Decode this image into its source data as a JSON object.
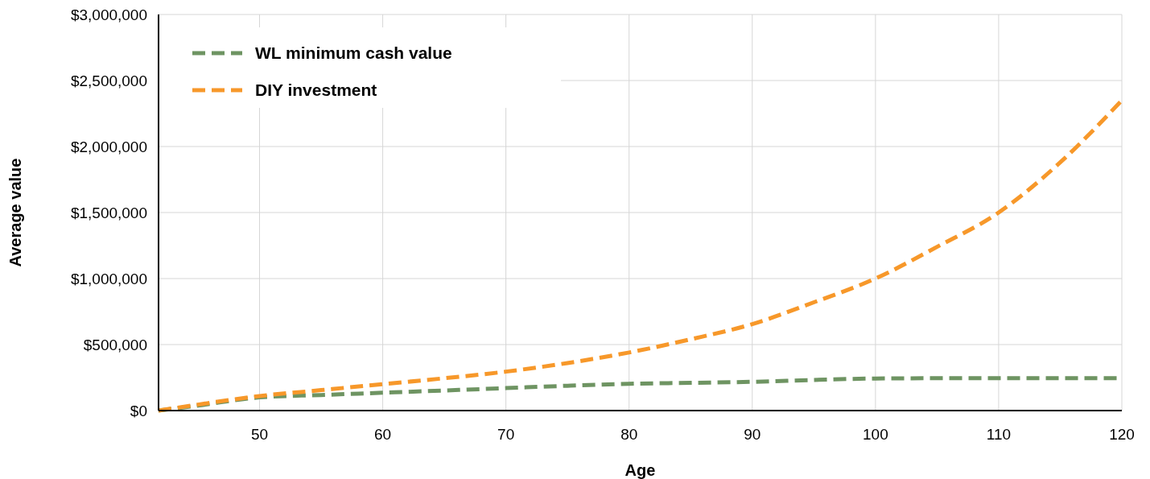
{
  "chart_data": {
    "type": "line",
    "xlabel": "Age",
    "ylabel": "Average value",
    "x": [
      41.8,
      45,
      50,
      55,
      60,
      65,
      70,
      75,
      80,
      85,
      90,
      95,
      100,
      105,
      110,
      115,
      120
    ],
    "series": [
      {
        "name": "WL minimum cash value",
        "color": "#6e9462",
        "values": [
          0,
          38000,
          100000,
          118000,
          135000,
          152000,
          170000,
          188000,
          203000,
          210000,
          218000,
          232000,
          243000,
          245000,
          245000,
          245000,
          245000
        ]
      },
      {
        "name": "DIY investment",
        "color": "#f7982a",
        "values": [
          0,
          45000,
          110000,
          155000,
          200000,
          245000,
          295000,
          360000,
          440000,
          540000,
          655000,
          820000,
          1000000,
          1240000,
          1500000,
          1880000,
          2350000
        ]
      }
    ],
    "xlim": [
      41.8,
      120
    ],
    "xticks": [
      50,
      60,
      70,
      80,
      90,
      100,
      110,
      120
    ],
    "ylim": [
      0,
      3000000
    ],
    "yticks": [
      {
        "value": 0,
        "label": "$0"
      },
      {
        "value": 500000,
        "label": "$500,000"
      },
      {
        "value": 1000000,
        "label": "$1,000,000"
      },
      {
        "value": 1500000,
        "label": "$1,500,000"
      },
      {
        "value": 2000000,
        "label": "$2,000,000"
      },
      {
        "value": 2500000,
        "label": "$2,500,000"
      },
      {
        "value": 3000000,
        "label": "$3,000,000"
      }
    ],
    "grid": true,
    "legend": "top left",
    "line_style": "dashed",
    "marker": "none"
  }
}
